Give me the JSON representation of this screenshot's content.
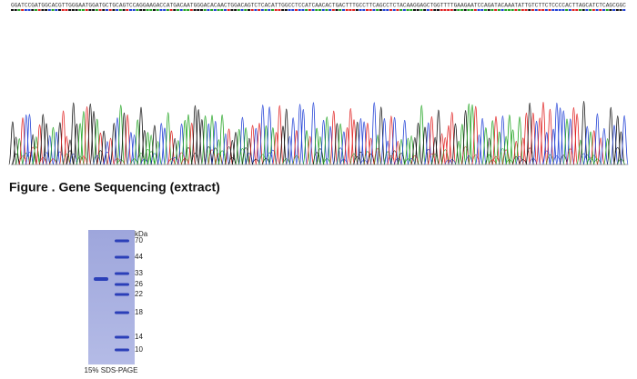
{
  "sequence": "GGATCCGATGGCACGTTGGGAATGGATGCTGCAGTCCAGGAAGACCATGACAATGGGACACAACTGGACAGTCTCACATTGGCCTCCATCAACACTGACTTTGCCTTCAGCCTCTACAAGGAGCTGGTTTTGAAGAATCCAGATACAAATATTGTCTTCTCCCCACTTAGCATCTCAGCGGC",
  "caption": "Figure . Gene Sequencing (extract)",
  "gel": {
    "unit": "kDa",
    "markers": [
      70,
      44,
      33,
      26,
      22,
      18,
      14,
      10
    ],
    "caption": "15% SDS-PAGE"
  }
}
